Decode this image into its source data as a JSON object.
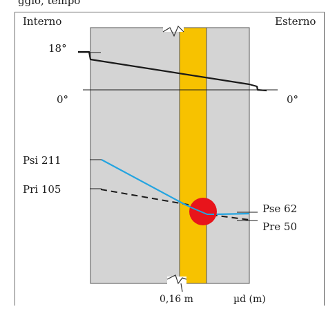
{
  "header": {
    "partial_caption": "ggio, tempo"
  },
  "sides": {
    "inside": "Interno",
    "outside": "Esterno"
  },
  "temperature": {
    "inside_label": "18°",
    "zero_label_left": "0°",
    "zero_label_right": "0°"
  },
  "pressure": {
    "psi_label": "Psi 211",
    "pri_label": "Pri 105",
    "pse_label": "Pse 62",
    "pre_label": "Pre 50"
  },
  "axis": {
    "thickness_label": "0,16 m",
    "mu_label": "µd (m)"
  },
  "colors": {
    "wall": "#d4d4d4",
    "insulation": "#f7c200",
    "saturation_line": "#23a4e0",
    "condensation_marker": "#e8141b",
    "temperature_line": "#1a1a1a",
    "frame": "#6e6e6e"
  }
}
